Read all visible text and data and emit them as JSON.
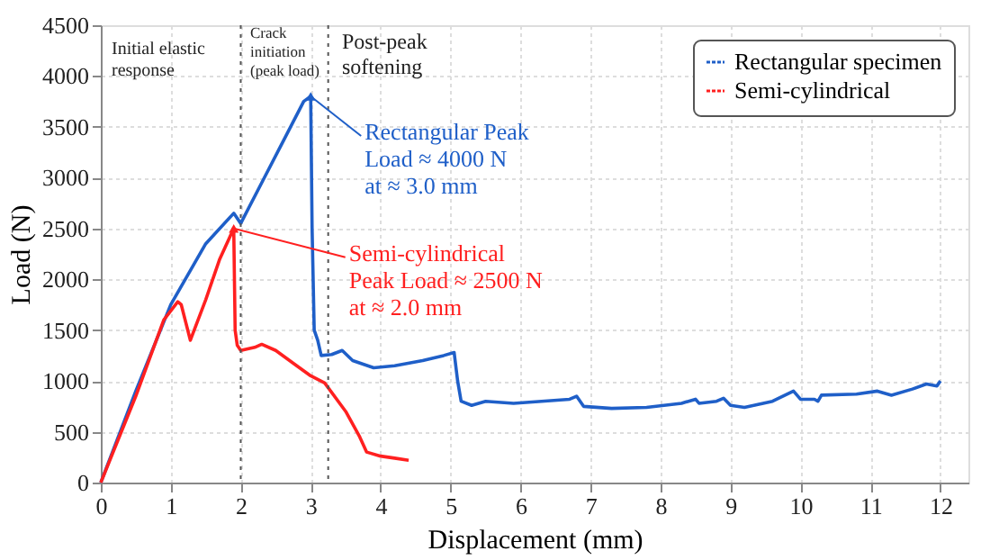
{
  "chart_data": {
    "type": "line",
    "xlabel": "Displacement (mm)",
    "ylabel": "Load (N)",
    "xlim": [
      0,
      12.4
    ],
    "ylim": [
      0,
      4500
    ],
    "xticks": [
      0,
      1,
      2,
      3,
      4,
      5,
      6,
      7,
      8,
      9,
      10,
      11,
      12
    ],
    "yticks": [
      0,
      500,
      1000,
      1500,
      2000,
      2500,
      3000,
      3500,
      4000,
      4500
    ],
    "grid": true,
    "legend": "top right",
    "line_style": "solid",
    "marker": "none",
    "series": [
      {
        "name": "Rectangular specimen",
        "color": "#1f5fc8",
        "x": [
          0,
          0.5,
          1,
          1.5,
          1.9,
          2.0,
          2.3,
          2.6,
          2.9,
          3.0,
          3.02,
          3.05,
          3.1,
          3.15,
          3.3,
          3.45,
          3.6,
          3.9,
          4.2,
          4.6,
          4.9,
          5.05,
          5.1,
          5.15,
          5.3,
          5.5,
          5.9,
          6.3,
          6.7,
          6.8,
          6.9,
          7.3,
          7.8,
          8.3,
          8.5,
          8.55,
          8.8,
          8.9,
          9.0,
          9.2,
          9.6,
          9.9,
          10.0,
          10.2,
          10.25,
          10.3,
          10.8,
          11.1,
          11.3,
          11.6,
          11.8,
          11.95,
          12.0
        ],
        "values": [
          0,
          900,
          1750,
          2350,
          2650,
          2550,
          2950,
          3350,
          3750,
          3800,
          2500,
          1500,
          1400,
          1250,
          1260,
          1300,
          1200,
          1130,
          1150,
          1200,
          1250,
          1280,
          1000,
          800,
          760,
          800,
          780,
          800,
          820,
          850,
          750,
          730,
          740,
          780,
          820,
          780,
          800,
          830,
          760,
          740,
          800,
          900,
          820,
          820,
          800,
          860,
          870,
          900,
          860,
          920,
          970,
          950,
          1000
        ]
      },
      {
        "name": "Semi-cylindrical",
        "color": "#ff2020",
        "x": [
          0,
          0.5,
          0.9,
          1.1,
          1.15,
          1.28,
          1.5,
          1.7,
          1.9,
          1.92,
          1.95,
          2.0,
          2.2,
          2.3,
          2.5,
          2.8,
          3.0,
          3.2,
          3.5,
          3.7,
          3.8,
          4.0,
          4.2,
          4.4
        ],
        "values": [
          0,
          850,
          1600,
          1780,
          1750,
          1400,
          1800,
          2200,
          2500,
          1500,
          1350,
          1300,
          1330,
          1360,
          1300,
          1150,
          1050,
          980,
          700,
          450,
          300,
          260,
          240,
          220
        ]
      }
    ],
    "ref_lines": [
      {
        "axis": "x",
        "value": 2.0,
        "line_style": "dotted",
        "color": "#555555"
      },
      {
        "axis": "x",
        "value": 3.25,
        "line_style": "dotted",
        "color": "#555555"
      }
    ],
    "annotations": [
      "Initial elastic\nresponse",
      "Crack\ninitiation\n(peak load)",
      "Post-peak\nsoftening",
      {
        "text": "Rectangular Peak\nLoad ≈ 4000 N\nat ≈  3.0 mm",
        "x": 3.0,
        "y": 3800
      },
      {
        "text": "Semi-cylindrical\nPeak Load ≈ 2500 N\nat ≈  2.0 mm",
        "x": 1.9,
        "y": 2500
      }
    ]
  }
}
